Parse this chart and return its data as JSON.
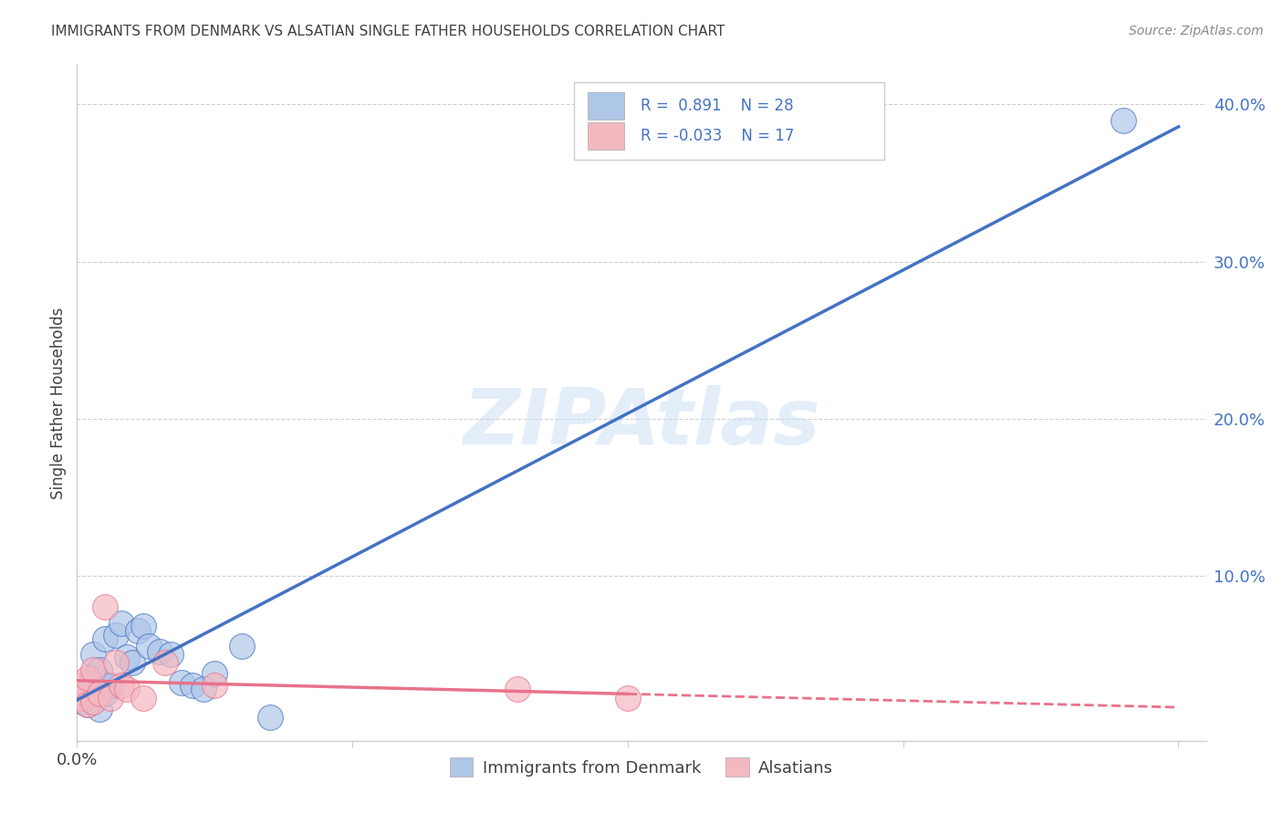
{
  "title": "IMMIGRANTS FROM DENMARK VS ALSATIAN SINGLE FATHER HOUSEHOLDS CORRELATION CHART",
  "source": "Source: ZipAtlas.com",
  "ylabel": "Single Father Households",
  "xlim": [
    0.0,
    0.205
  ],
  "ylim": [
    -0.005,
    0.425
  ],
  "xtick_vals": [
    0.0,
    0.05,
    0.1,
    0.15,
    0.2
  ],
  "ytick_vals": [
    0.1,
    0.2,
    0.3,
    0.4
  ],
  "denmark_R": 0.891,
  "denmark_N": 28,
  "alsatian_R": -0.033,
  "alsatian_N": 17,
  "legend_label_denmark": "Immigrants from Denmark",
  "legend_label_alsatian": "Alsatians",
  "denmark_color": "#aec6e8",
  "denmark_color_dark": "#4472c4",
  "alsatian_color": "#f4b8c1",
  "alsatian_color_dark": "#e8728a",
  "title_color": "#404040",
  "axis_color": "#4472c4",
  "watermark_text": "ZIPAtlas",
  "denmark_x": [
    0.001,
    0.001,
    0.002,
    0.002,
    0.003,
    0.003,
    0.003,
    0.004,
    0.004,
    0.005,
    0.005,
    0.006,
    0.007,
    0.008,
    0.009,
    0.01,
    0.011,
    0.012,
    0.013,
    0.015,
    0.017,
    0.019,
    0.021,
    0.023,
    0.025,
    0.03,
    0.035,
    0.19
  ],
  "denmark_y": [
    0.02,
    0.025,
    0.018,
    0.03,
    0.022,
    0.035,
    0.05,
    0.015,
    0.04,
    0.025,
    0.06,
    0.03,
    0.062,
    0.07,
    0.048,
    0.045,
    0.065,
    0.068,
    0.055,
    0.052,
    0.05,
    0.032,
    0.03,
    0.028,
    0.038,
    0.055,
    0.01,
    0.39
  ],
  "alsatian_x": [
    0.001,
    0.001,
    0.002,
    0.002,
    0.003,
    0.003,
    0.004,
    0.005,
    0.006,
    0.007,
    0.008,
    0.009,
    0.012,
    0.016,
    0.025,
    0.08,
    0.1
  ],
  "alsatian_y": [
    0.022,
    0.03,
    0.018,
    0.035,
    0.02,
    0.04,
    0.025,
    0.08,
    0.022,
    0.045,
    0.03,
    0.028,
    0.022,
    0.045,
    0.03,
    0.028,
    0.022
  ],
  "grid_color": "#d0d0d0",
  "spine_color": "#cccccc"
}
